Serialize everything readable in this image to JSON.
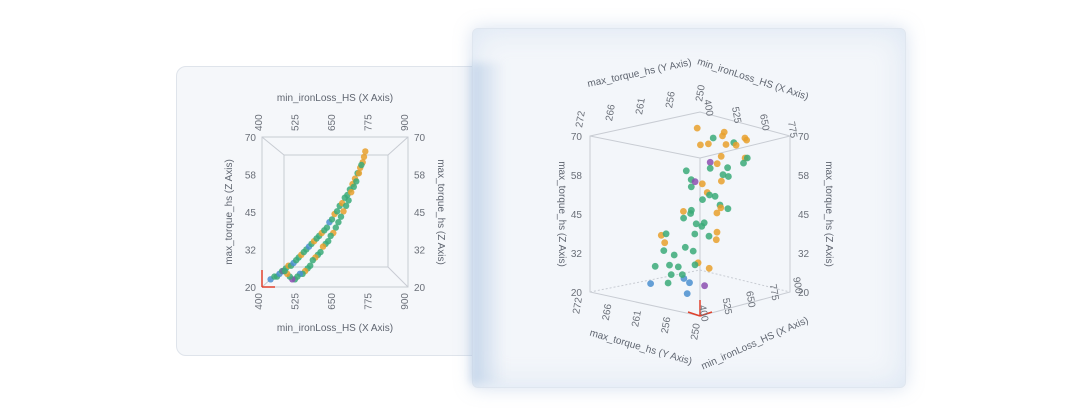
{
  "chart_data": [
    {
      "type": "scatter",
      "view": "front",
      "xlabel": "min_ironLoss_HS (X Axis)",
      "zlabel": "max_torque_hs (Z Axis)",
      "x_ticks": [
        "400",
        "525",
        "650",
        "775",
        "900"
      ],
      "z_ticks": [
        "70",
        "58",
        "45",
        "32",
        "20"
      ],
      "xlim": [
        400,
        900
      ],
      "zlim": [
        20,
        70
      ],
      "series_colors": [
        "#3aaa78",
        "#e8a02c",
        "#4a8fcf",
        "#8b4fb0"
      ],
      "points_x": [
        410,
        425,
        435,
        445,
        455,
        460,
        470,
        480,
        490,
        500,
        510,
        520,
        530,
        540,
        550,
        560,
        570,
        580,
        590,
        600,
        610,
        620,
        630,
        640,
        650,
        660,
        670,
        680,
        690,
        700,
        710,
        720,
        730,
        740,
        750,
        760,
        770,
        775,
        780,
        765,
        755,
        745,
        735,
        725,
        715,
        705,
        695,
        685,
        675,
        665,
        655,
        645,
        635,
        625,
        615,
        605,
        595,
        585,
        575,
        565,
        555,
        545,
        535,
        525,
        515,
        505,
        495,
        485,
        475,
        465
      ],
      "points_z": [
        21,
        22,
        22,
        23,
        24,
        24,
        25,
        26,
        26,
        27,
        28,
        29,
        30,
        31,
        32,
        33,
        34,
        35,
        36,
        37,
        38,
        39,
        40,
        42,
        43,
        45,
        46,
        48,
        49,
        51,
        52,
        54,
        56,
        58,
        60,
        62,
        64,
        66,
        68,
        63,
        60,
        57,
        55,
        53,
        50,
        48,
        46,
        44,
        42,
        40,
        38,
        37,
        35,
        34,
        33,
        31,
        30,
        29,
        28,
        26,
        25,
        24,
        23,
        23,
        22,
        21,
        21,
        22,
        23,
        24
      ],
      "points_series": [
        2,
        0,
        0,
        2,
        0,
        3,
        0,
        1,
        0,
        2,
        0,
        0,
        1,
        0,
        0,
        2,
        0,
        1,
        0,
        0,
        1,
        0,
        0,
        2,
        0,
        1,
        0,
        0,
        1,
        0,
        0,
        0,
        1,
        1,
        0,
        1,
        1,
        1,
        1,
        0,
        1,
        0,
        0,
        1,
        0,
        0,
        1,
        0,
        0,
        0,
        1,
        0,
        0,
        0,
        1,
        0,
        0,
        1,
        0,
        0,
        0,
        1,
        0,
        2,
        0,
        0,
        3,
        0,
        1,
        0
      ]
    },
    {
      "type": "scatter",
      "view": "rotated-3d",
      "xlabel": "min_ironLoss_HS (X Axis)",
      "ylabel": "max_torque_hs (Y Axis)",
      "zlabel": "max_torque_hs (Z Axis)",
      "x_ticks_top": [
        "400",
        "525",
        "650",
        "775"
      ],
      "x_ticks_bottom": [
        "400",
        "525",
        "650",
        "775",
        "900"
      ],
      "y_ticks_top": [
        "272",
        "266",
        "261",
        "256",
        "250"
      ],
      "y_ticks_bottom": [
        "272",
        "266",
        "261",
        "256",
        "250"
      ],
      "z_ticks": [
        "70",
        "58",
        "45",
        "32",
        "20"
      ],
      "xlim": [
        400,
        900
      ],
      "ylim": [
        250,
        272
      ],
      "zlim": [
        20,
        70
      ],
      "series_colors": [
        "#3aaa78",
        "#e8a02c",
        "#4a8fcf",
        "#8b4fb0"
      ],
      "points_x": [
        420,
        440,
        460,
        480,
        500,
        520,
        540,
        560,
        580,
        600,
        620,
        640,
        660,
        680,
        700,
        720,
        740,
        760,
        780,
        800,
        430,
        450,
        470,
        490,
        510,
        530,
        550,
        570,
        590,
        610,
        630,
        650,
        670,
        690,
        710,
        730,
        750,
        770,
        790,
        810,
        440,
        470,
        500,
        530,
        560,
        590,
        620,
        650,
        680,
        710,
        740,
        770,
        800,
        830,
        455,
        485,
        515,
        545,
        575,
        605,
        635,
        665,
        695,
        725,
        755,
        785,
        815
      ],
      "points_y": [
        255,
        262,
        258,
        268,
        252,
        264,
        259,
        270,
        256,
        261,
        266,
        253,
        258,
        263,
        269,
        257,
        260,
        265,
        254,
        262,
        267,
        251,
        259,
        264,
        256,
        261,
        268,
        253,
        258,
        263,
        255,
        260,
        266,
        257,
        262,
        252,
        259,
        264,
        270,
        256,
        261,
        255,
        266,
        258,
        263,
        254,
        260,
        265,
        257,
        262,
        253,
        268,
        259,
        264,
        256,
        261,
        267,
        252,
        258,
        263,
        255,
        260,
        266,
        257,
        262,
        254,
        259
      ],
      "points_z": [
        21,
        23,
        25,
        27,
        29,
        31,
        33,
        36,
        38,
        41,
        44,
        47,
        50,
        53,
        56,
        59,
        62,
        65,
        68,
        69,
        22,
        24,
        26,
        28,
        30,
        34,
        37,
        40,
        42,
        45,
        48,
        51,
        54,
        57,
        60,
        63,
        66,
        67,
        69,
        68,
        26,
        30,
        35,
        39,
        43,
        46,
        49,
        52,
        55,
        58,
        61,
        64,
        66,
        67,
        24,
        28,
        32,
        38,
        41,
        44,
        47,
        50,
        53,
        56,
        59,
        62,
        65
      ],
      "points_series": [
        2,
        0,
        2,
        0,
        1,
        0,
        0,
        1,
        0,
        0,
        1,
        0,
        0,
        1,
        0,
        0,
        1,
        1,
        1,
        1,
        2,
        3,
        0,
        0,
        1,
        0,
        0,
        1,
        0,
        0,
        0,
        1,
        0,
        0,
        3,
        1,
        1,
        0,
        1,
        1,
        0,
        0,
        1,
        0,
        0,
        1,
        0,
        0,
        1,
        0,
        0,
        1,
        0,
        1,
        2,
        0,
        0,
        1,
        0,
        0,
        1,
        0,
        3,
        0,
        1,
        0,
        1
      ]
    }
  ]
}
